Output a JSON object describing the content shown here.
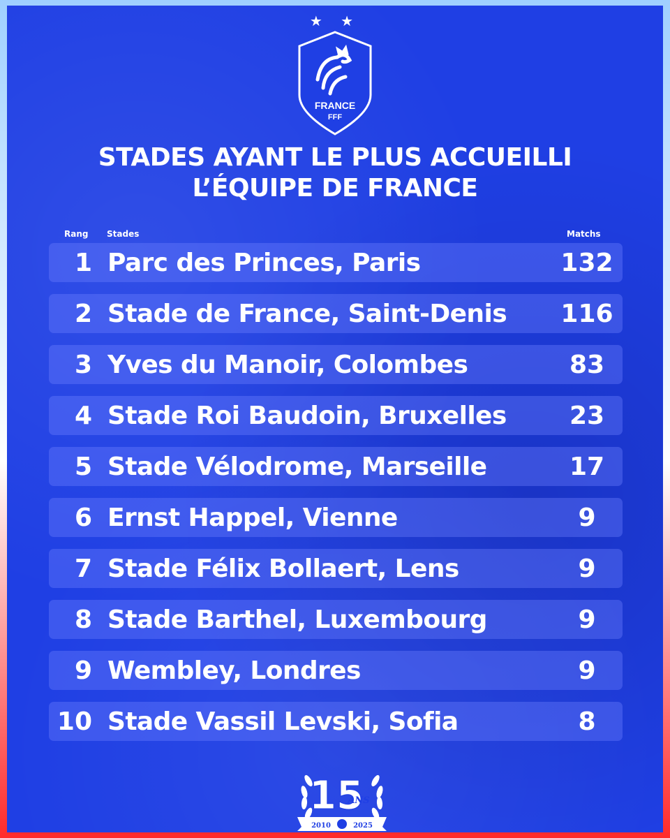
{
  "header": {
    "stars": "★ ★"
  },
  "logo": {
    "line1": "FRANCE",
    "line2": "FFF"
  },
  "title": {
    "line1": "STADES AYANT LE PLUS ACCUEILLI",
    "line2": "L’ÉQUIPE DE FRANCE"
  },
  "table": {
    "col_rank": "Rang",
    "col_stadium": "Stades",
    "col_matches": "Matchs",
    "rows": [
      {
        "rank": "1",
        "stadium": "Parc des Princes, Paris",
        "matches": "132"
      },
      {
        "rank": "2",
        "stadium": "Stade de France, Saint-Denis",
        "matches": "116"
      },
      {
        "rank": "3",
        "stadium": "Yves du Manoir, Colombes",
        "matches": "83"
      },
      {
        "rank": "4",
        "stadium": "Stade Roi Baudoin, Bruxelles",
        "matches": "23"
      },
      {
        "rank": "5",
        "stadium": "Stade Vélodrome, Marseille",
        "matches": "17"
      },
      {
        "rank": "6",
        "stadium": "Ernst Happel, Vienne",
        "matches": "9"
      },
      {
        "rank": "7",
        "stadium": "Stade Félix Bollaert, Lens",
        "matches": "9"
      },
      {
        "rank": "8",
        "stadium": "Stade Barthel, Luxembourg",
        "matches": "9"
      },
      {
        "rank": "9",
        "stadium": "Wembley, Londres",
        "matches": "9"
      },
      {
        "rank": "10",
        "stadium": "Stade Vassil Levski, Sofia",
        "matches": "8"
      }
    ]
  },
  "anniversary": {
    "number": "15",
    "suffix": "ANS",
    "year_start": "2010",
    "year_end": "2025"
  },
  "colors": {
    "background": "#1f3fe4",
    "row": "#5a72f0",
    "text": "#ffffff"
  }
}
